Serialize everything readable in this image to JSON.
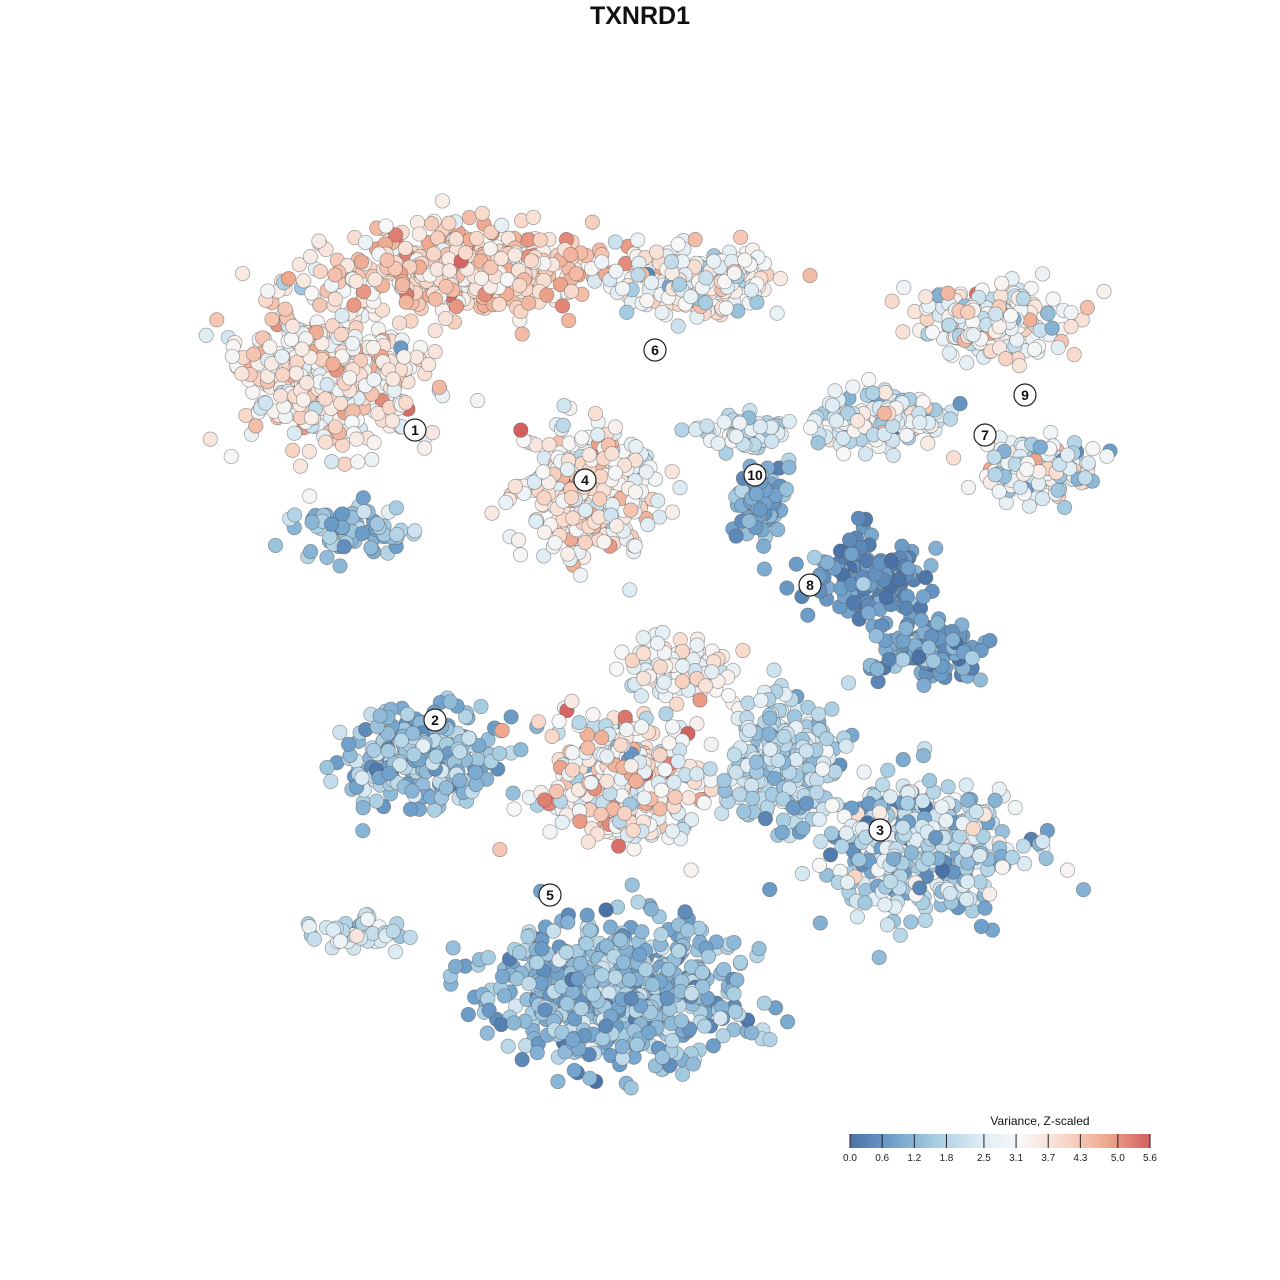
{
  "title": "TXNRD1",
  "chart_data": {
    "type": "scatter",
    "title": "TXNRD1",
    "xlabel": "",
    "ylabel": "",
    "grid": false,
    "axes_visible": false,
    "marker": "circle",
    "colorbar": {
      "title": "Variance, Z-scaled",
      "placement": "bottom-right",
      "ticks": [
        "0.0",
        "0.6",
        "1.2",
        "1.8",
        "2.5",
        "3.1",
        "3.7",
        "4.3",
        "5.0",
        "5.6"
      ],
      "tick_values": [
        0.0,
        0.6,
        1.2,
        1.8,
        2.5,
        3.1,
        3.7,
        4.3,
        5.0,
        5.6
      ],
      "range": [
        0.0,
        5.6
      ],
      "colors": [
        "#4a72a6",
        "#6fa0cb",
        "#a7cde2",
        "#dcebf3",
        "#f7f7f7",
        "#f9d8c9",
        "#efa88e",
        "#d35f5f"
      ]
    },
    "cluster_labels": [
      {
        "label": "1",
        "x": -22.5,
        "y": 21.0,
        "mean_value": 3.6
      },
      {
        "label": "2",
        "x": -20.5,
        "y": -8.0,
        "mean_value": 1.3
      },
      {
        "label": "3",
        "x": 24.0,
        "y": -19.0,
        "mean_value": 2.4
      },
      {
        "label": "4",
        "x": -5.5,
        "y": 16.0,
        "mean_value": 3.4
      },
      {
        "label": "5",
        "x": -9.0,
        "y": -25.5,
        "mean_value": 1.4
      },
      {
        "label": "6",
        "x": 1.5,
        "y": 29.0,
        "mean_value": 3.3
      },
      {
        "label": "7",
        "x": 34.5,
        "y": 20.5,
        "mean_value": 2.6
      },
      {
        "label": "8",
        "x": 17.0,
        "y": 5.5,
        "mean_value": 0.8
      },
      {
        "label": "9",
        "x": 38.5,
        "y": 24.5,
        "mean_value": 3.0
      },
      {
        "label": "10",
        "x": 11.5,
        "y": 16.5,
        "mean_value": 1.0
      }
    ]
  }
}
